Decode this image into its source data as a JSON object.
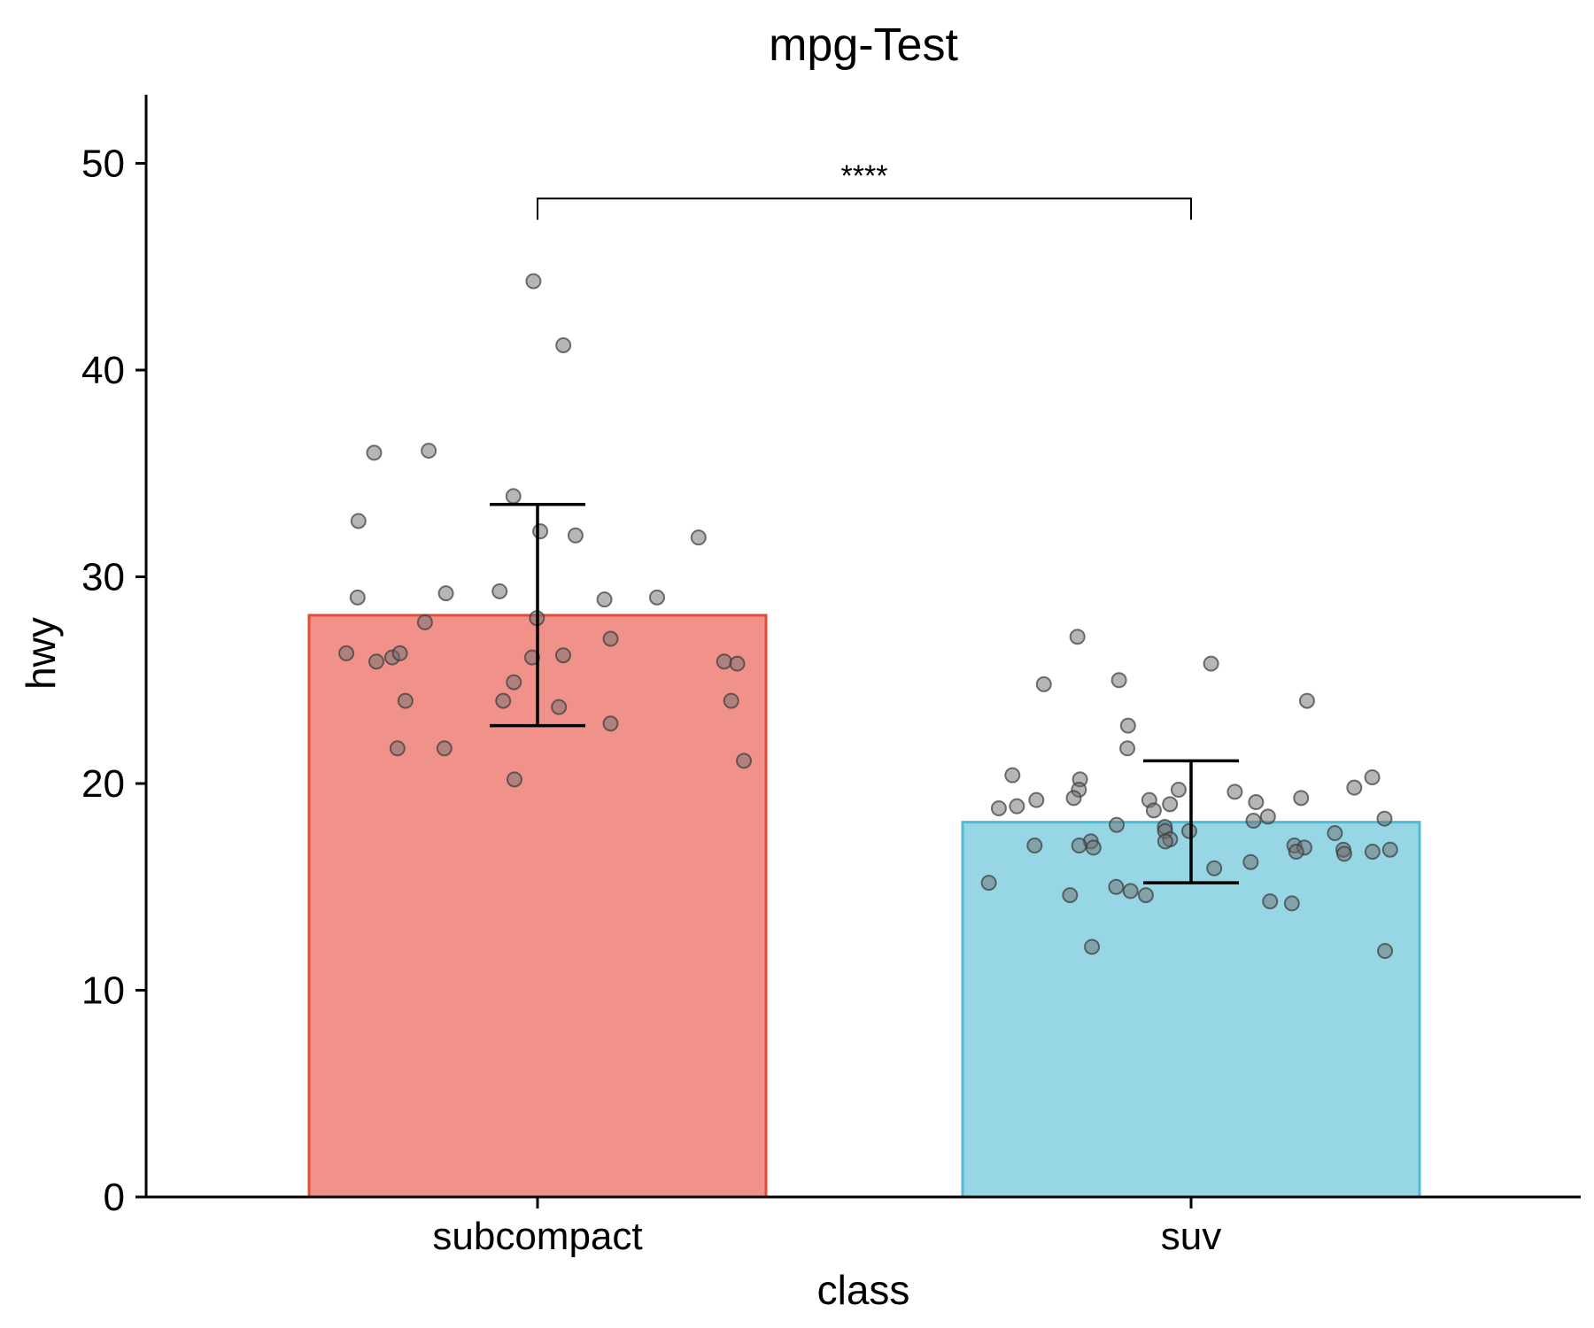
{
  "chart_data": {
    "type": "bar",
    "title": "mpg-Test",
    "xlabel": "class",
    "ylabel": "hwy",
    "categories": [
      "subcompact",
      "suv"
    ],
    "values": [
      28.14,
      18.13
    ],
    "error_bars": [
      {
        "lower": 22.8,
        "upper": 33.5
      },
      {
        "lower": 15.2,
        "upper": 21.1
      }
    ],
    "colors": {
      "subcompact": {
        "fill": "#F0928A",
        "stroke": "#E64B35"
      },
      "suv": {
        "fill": "#96D6E5",
        "stroke": "#4DBBD5"
      },
      "points": "#6E6E6E"
    },
    "ylim": [
      0,
      53
    ],
    "yticks": [
      0,
      10,
      20,
      30,
      40,
      50
    ],
    "grid": false,
    "legend": "none",
    "significance": {
      "groups": [
        "subcompact",
        "suv"
      ],
      "label": "****",
      "y": 48.3
    },
    "points": [
      {
        "category": "subcompact",
        "values": [
          44.3,
          41.2,
          36.0,
          36.1,
          33.9,
          32.2,
          32.7,
          31.9,
          32.0,
          29.3,
          29.2,
          29.0,
          28.9,
          29.0,
          28.0,
          27.8,
          27.0,
          26.1,
          26.2,
          26.1,
          26.3,
          26.3,
          25.9,
          25.8,
          25.9,
          24.9,
          24.0,
          24.0,
          24.0,
          23.7,
          22.9,
          21.7,
          21.7,
          21.1,
          20.2
        ]
      },
      {
        "category": "suv",
        "values": [
          27.1,
          25.8,
          25.0,
          24.8,
          24.0,
          22.8,
          21.7,
          20.4,
          20.3,
          20.2,
          19.8,
          19.7,
          19.7,
          19.6,
          19.2,
          19.3,
          19.1,
          19.2,
          19.3,
          19.0,
          18.9,
          18.8,
          18.7,
          18.4,
          18.2,
          18.3,
          18.0,
          17.9,
          17.7,
          17.7,
          17.6,
          17.3,
          17.2,
          17.2,
          17.0,
          17.0,
          17.0,
          16.9,
          16.9,
          16.8,
          16.8,
          16.7,
          16.6,
          16.7,
          16.2,
          15.9,
          15.2,
          15.0,
          14.8,
          14.6,
          14.6,
          14.3,
          14.2,
          12.1,
          11.9
        ]
      }
    ]
  }
}
